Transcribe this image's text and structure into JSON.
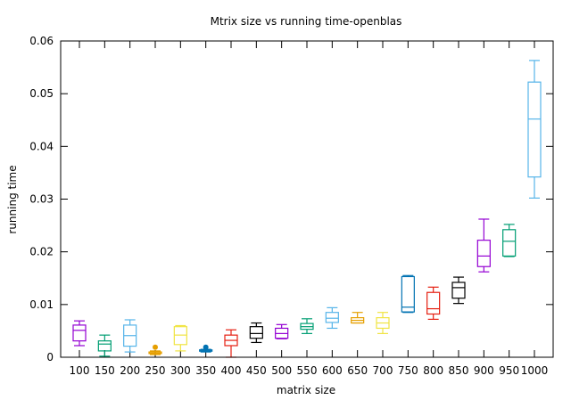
{
  "chart_data": {
    "type": "boxplot",
    "title": "Mtrix size vs running time-openblas",
    "xlabel": "matrix size",
    "ylabel": "running time",
    "ylim": [
      0,
      0.06
    ],
    "yticks": [
      "0",
      "0.01",
      "0.02",
      "0.03",
      "0.04",
      "0.05",
      "0.06"
    ],
    "grid": false,
    "categories": [
      "100",
      "150",
      "200",
      "250",
      "300",
      "350",
      "400",
      "450",
      "500",
      "550",
      "600",
      "650",
      "700",
      "750",
      "800",
      "850",
      "900",
      "950",
      "1000"
    ],
    "boxes": [
      {
        "min": 0.0022,
        "q1": 0.0031,
        "median": 0.0051,
        "q3": 0.0061,
        "max": 0.0069,
        "outliers": [],
        "color": "#9400d3"
      },
      {
        "min": 0.0002,
        "q1": 0.0012,
        "median": 0.0025,
        "q3": 0.0031,
        "max": 0.0042,
        "outliers": [],
        "color": "#009e73"
      },
      {
        "min": 0.001,
        "q1": 0.0021,
        "median": 0.0041,
        "q3": 0.0061,
        "max": 0.0071,
        "outliers": [],
        "color": "#56b4e9"
      },
      {
        "min": 0.0005,
        "q1": 0.0007,
        "median": 0.0008,
        "q3": 0.001,
        "max": 0.0012,
        "outliers": [
          0.0019
        ],
        "color": "#e69f00"
      },
      {
        "min": 0.0012,
        "q1": 0.0024,
        "median": 0.0042,
        "q3": 0.0058,
        "max": 0.006,
        "outliers": [],
        "color": "#f0e442"
      },
      {
        "min": 0.001,
        "q1": 0.0012,
        "median": 0.0013,
        "q3": 0.0014,
        "max": 0.0015,
        "outliers": [
          0.0019
        ],
        "color": "#0072b2"
      },
      {
        "min": 0.0,
        "q1": 0.0022,
        "median": 0.0032,
        "q3": 0.0042,
        "max": 0.0052,
        "outliers": [],
        "color": "#e51e10"
      },
      {
        "min": 0.0028,
        "q1": 0.0036,
        "median": 0.0045,
        "q3": 0.0058,
        "max": 0.0065,
        "outliers": [],
        "color": "#000000"
      },
      {
        "min": 0.0035,
        "q1": 0.0036,
        "median": 0.0045,
        "q3": 0.0055,
        "max": 0.0062,
        "outliers": [],
        "color": "#9400d3"
      },
      {
        "min": 0.0045,
        "q1": 0.0053,
        "median": 0.0058,
        "q3": 0.0064,
        "max": 0.0073,
        "outliers": [],
        "color": "#009e73"
      },
      {
        "min": 0.0055,
        "q1": 0.0066,
        "median": 0.0074,
        "q3": 0.0085,
        "max": 0.0094,
        "outliers": [],
        "color": "#56b4e9"
      },
      {
        "min": 0.0065,
        "q1": 0.0065,
        "median": 0.007,
        "q3": 0.0075,
        "max": 0.0085,
        "outliers": [],
        "color": "#e69f00"
      },
      {
        "min": 0.0045,
        "q1": 0.0055,
        "median": 0.0065,
        "q3": 0.0075,
        "max": 0.0085,
        "outliers": [],
        "color": "#f0e442"
      },
      {
        "min": 0.0085,
        "q1": 0.0086,
        "median": 0.0095,
        "q3": 0.0153,
        "max": 0.0155,
        "outliers": [],
        "color": "#0072b2"
      },
      {
        "min": 0.0072,
        "q1": 0.0082,
        "median": 0.0092,
        "q3": 0.0123,
        "max": 0.0133,
        "outliers": [],
        "color": "#e51e10"
      },
      {
        "min": 0.0102,
        "q1": 0.0112,
        "median": 0.0132,
        "q3": 0.0142,
        "max": 0.0152,
        "outliers": [],
        "color": "#000000"
      },
      {
        "min": 0.0162,
        "q1": 0.0172,
        "median": 0.0192,
        "q3": 0.0222,
        "max": 0.0262,
        "outliers": [],
        "color": "#9400d3"
      },
      {
        "min": 0.0191,
        "q1": 0.0192,
        "median": 0.022,
        "q3": 0.0242,
        "max": 0.0252,
        "outliers": [],
        "color": "#009e73"
      },
      {
        "min": 0.0302,
        "q1": 0.0342,
        "median": 0.0452,
        "q3": 0.0522,
        "max": 0.0563,
        "outliers": [],
        "color": "#56b4e9"
      }
    ]
  }
}
